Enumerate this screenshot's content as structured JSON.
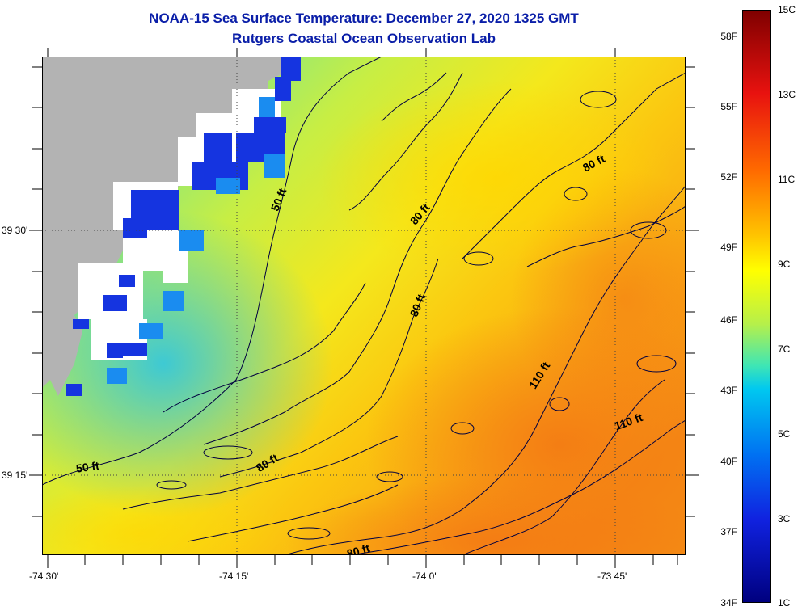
{
  "title": "NOAA-15 Sea Surface Temperature:  December 27, 2020 1325 GMT",
  "subtitle": "Rutgers Coastal Ocean Observation Lab",
  "axes": {
    "x_ticks": [
      "-74 30'",
      "-74 15'",
      "-74 0'",
      "-73 45'"
    ],
    "y_ticks": [
      "39 30'",
      "39 15'"
    ]
  },
  "contours": {
    "c50a": "50 ft",
    "c50b": "50 ft",
    "c80a": "80 ft",
    "c80b": "80 ft",
    "c80c": "80 ft",
    "c80d": "80 ft",
    "c80e": "80 ft",
    "c110a": "110 ft",
    "c110b": "110 ft"
  },
  "colorbar": {
    "fahrenheit": [
      "58F",
      "55F",
      "52F",
      "49F",
      "46F",
      "43F",
      "40F",
      "37F",
      "34F"
    ],
    "celsius": [
      "15C",
      "13C",
      "11C",
      "9C",
      "7C",
      "5C",
      "3C",
      "1C"
    ]
  },
  "colors": {
    "title": "#0a1ea8",
    "land": "#b3b3b3",
    "cloud": "#ffffff",
    "contour": "#000040"
  }
}
